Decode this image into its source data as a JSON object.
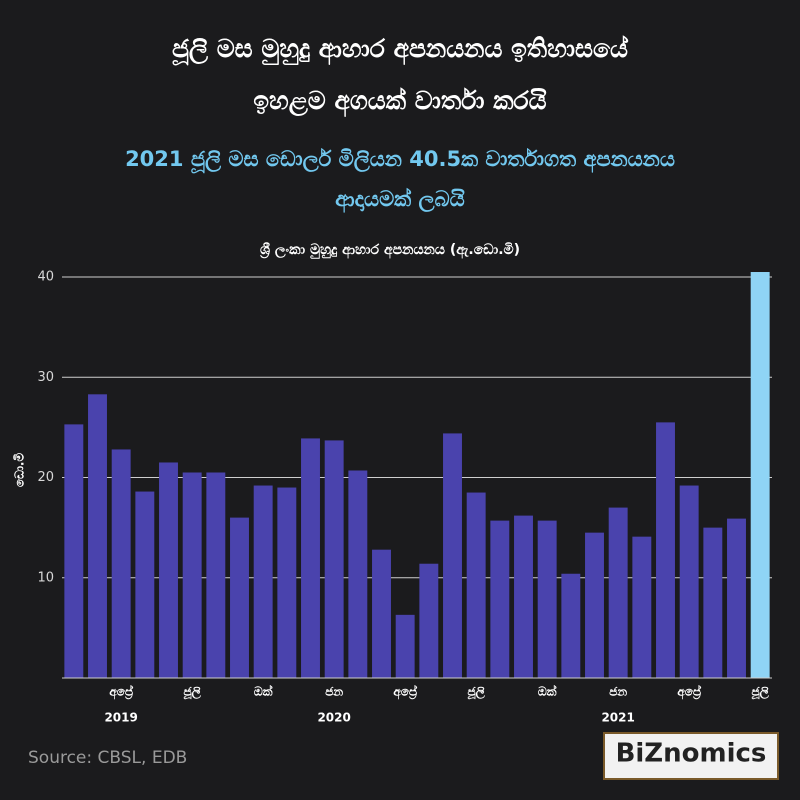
{
  "chart_data": {
    "type": "bar",
    "title": "ජූලි මස මුහුදු ආහාර අපනයනය ඉතිහාසයේ",
    "title_line2": "ඉහළම අගයක් වාර්තා කරයි",
    "subtitle": "2021 ජූලි මස ඩොලර් මිලියන 40.5ක වාර්තාගත අපනයනය",
    "subtitle_line2": "ආදායමක් ලබයි",
    "chart_title": "ශ්‍රී ලංකා මුහුදු ආහාර අපනයනය (ඇ.ඩො.මි)",
    "y_label": "ඩො.මි",
    "source": "Source: CBSL, EDB",
    "logo": "BiZnomics",
    "categories": [
      null,
      null,
      "අප්‍රේ",
      null,
      null,
      "ජූලි",
      null,
      null,
      "ඔක්",
      null,
      null,
      "ජන",
      null,
      null,
      "අප්‍රේ",
      null,
      null,
      "ජූලි",
      null,
      null,
      "ඔක්",
      null,
      null,
      "ජන",
      null,
      null,
      "අප්‍රේ",
      null,
      null,
      "ජූලි"
    ],
    "category_years": [
      null,
      null,
      "2019",
      null,
      null,
      null,
      null,
      null,
      null,
      null,
      null,
      "2020",
      null,
      null,
      null,
      null,
      null,
      null,
      null,
      null,
      null,
      null,
      null,
      "2021",
      null,
      null,
      null,
      null,
      null,
      null
    ],
    "values": [
      25.3,
      28.3,
      22.8,
      18.6,
      21.5,
      20.5,
      20.5,
      16.0,
      19.2,
      19.0,
      23.9,
      23.7,
      20.7,
      12.8,
      6.3,
      11.4,
      24.4,
      18.5,
      15.7,
      16.2,
      15.7,
      10.4,
      14.5,
      17.0,
      14.1,
      25.5,
      19.2,
      15.0,
      15.9,
      40.5
    ],
    "colors": [
      "#4a43ad",
      "#4a43ad",
      "#4a43ad",
      "#4a43ad",
      "#4a43ad",
      "#4a43ad",
      "#4a43ad",
      "#4a43ad",
      "#4a43ad",
      "#4a43ad",
      "#4a43ad",
      "#4a43ad",
      "#4a43ad",
      "#4a43ad",
      "#4a43ad",
      "#4a43ad",
      "#4a43ad",
      "#4a43ad",
      "#4a43ad",
      "#4a43ad",
      "#4a43ad",
      "#4a43ad",
      "#4a43ad",
      "#4a43ad",
      "#4a43ad",
      "#4a43ad",
      "#4a43ad",
      "#4a43ad",
      "#4a43ad",
      "#8fd4f5"
    ],
    "ylim": [
      0,
      41
    ],
    "yticks": [
      10,
      20,
      30,
      40
    ],
    "grid": true
  }
}
